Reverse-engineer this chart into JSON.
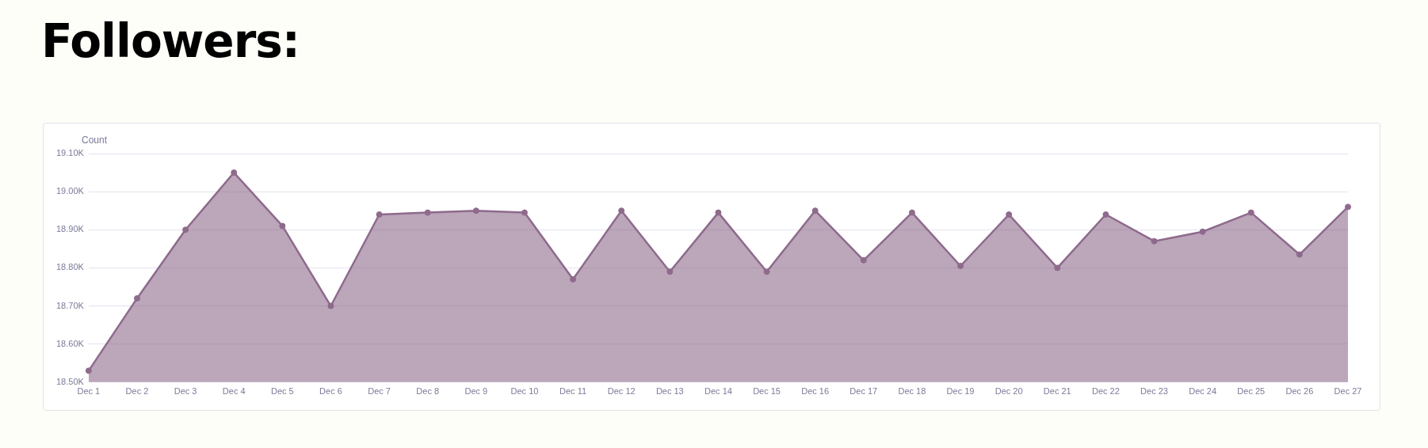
{
  "chart_data": {
    "type": "area",
    "title": "Followers:",
    "ylabel": "Count",
    "categories": [
      "Dec 1",
      "Dec 2",
      "Dec 3",
      "Dec 4",
      "Dec 5",
      "Dec 6",
      "Dec 7",
      "Dec 8",
      "Dec 9",
      "Dec 10",
      "Dec 11",
      "Dec 12",
      "Dec 13",
      "Dec 14",
      "Dec 15",
      "Dec 16",
      "Dec 17",
      "Dec 18",
      "Dec 19",
      "Dec 20",
      "Dec 21",
      "Dec 22",
      "Dec 23",
      "Dec 24",
      "Dec 25",
      "Dec 26",
      "Dec 27"
    ],
    "series": [
      {
        "color": "#8e6a8c",
        "values": [
          18530,
          18720,
          18900,
          19050,
          18910,
          18700,
          18940,
          18945,
          18950,
          18945,
          18770,
          18950,
          18790,
          18945,
          18790,
          18950,
          18820,
          18945,
          18805,
          18940,
          18800,
          18940,
          18870,
          18895,
          18945,
          18835,
          18960
        ]
      }
    ],
    "ylim": [
      18500,
      19100
    ],
    "yticks": [
      {
        "value": 18500,
        "label": "18.50K"
      },
      {
        "value": 18600,
        "label": "18.60K"
      },
      {
        "value": 18700,
        "label": "18.70K"
      },
      {
        "value": 18800,
        "label": "18.80K"
      },
      {
        "value": 18900,
        "label": "18.90K"
      },
      {
        "value": 19000,
        "label": "19.00K"
      },
      {
        "value": 19100,
        "label": "19.10K"
      }
    ],
    "grid": "y",
    "marker": "circle",
    "line_style": "solid"
  }
}
